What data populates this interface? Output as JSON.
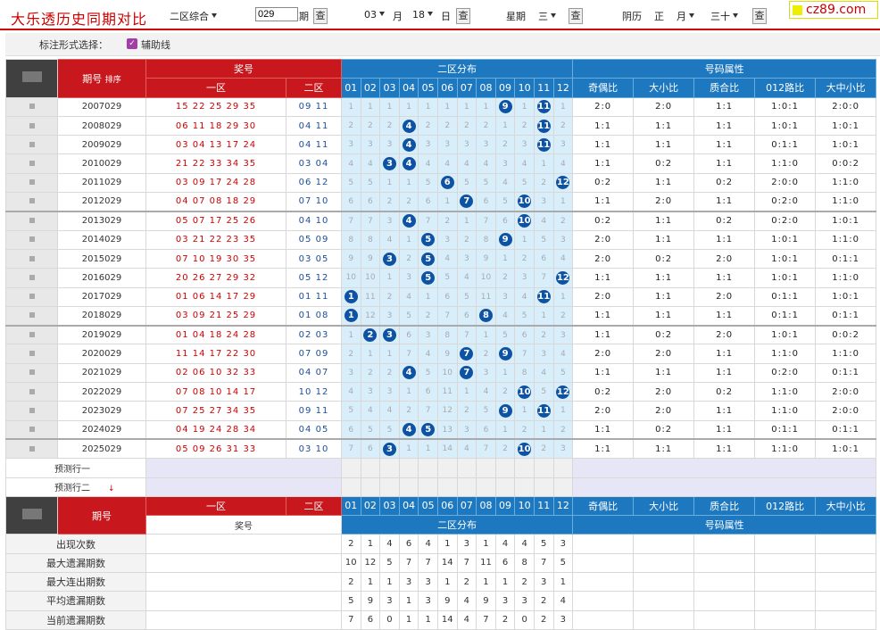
{
  "header": {
    "title": "大乐透历史同期对比",
    "zone_select": "二区综合",
    "issue_value": "029",
    "issue_label": "期",
    "query": "查",
    "month": "03",
    "month_label": "月",
    "day": "18",
    "day_label": "日",
    "week_label": "星期",
    "week": "三",
    "lunar_label": "阴历",
    "lunar_month": "正",
    "lunar_month_label": "月",
    "lunar_day": "三十",
    "logo": "cz89.com"
  },
  "options": {
    "label": "标注形式选择：",
    "check": "✓",
    "aux": "辅助线"
  },
  "table": {
    "h_issue": "期号",
    "h_sort": "排序",
    "h_prize": "奖号",
    "h_zone1": "一区",
    "h_zone2": "二区",
    "h_dist": "二区分布",
    "h_attr": "号码属性",
    "num_cols": [
      "01",
      "02",
      "03",
      "04",
      "05",
      "06",
      "07",
      "08",
      "09",
      "10",
      "11",
      "12"
    ],
    "attr_cols": [
      "奇偶比",
      "大小比",
      "质合比",
      "012路比",
      "大中小比"
    ],
    "rows": [
      {
        "issue": "2007029",
        "z1": "15 22 25 29 35",
        "z2": "09 11",
        "d": [
          "1",
          "1",
          "1",
          "1",
          "1",
          "1",
          "1",
          "1",
          "9",
          "1",
          "11",
          "1"
        ],
        "hit": [
          9,
          11
        ],
        "a": [
          "2:0",
          "2:0",
          "1:1",
          "1:0:1",
          "2:0:0"
        ]
      },
      {
        "issue": "2008029",
        "z1": "06 11 18 29 30",
        "z2": "04 11",
        "d": [
          "2",
          "2",
          "2",
          "4",
          "2",
          "2",
          "2",
          "2",
          "1",
          "2",
          "11",
          "2"
        ],
        "hit": [
          4,
          11
        ],
        "a": [
          "1:1",
          "1:1",
          "1:1",
          "1:0:1",
          "1:0:1"
        ]
      },
      {
        "issue": "2009029",
        "z1": "03 04 13 17 24",
        "z2": "04 11",
        "d": [
          "3",
          "3",
          "3",
          "4",
          "3",
          "3",
          "3",
          "3",
          "2",
          "3",
          "11",
          "3"
        ],
        "hit": [
          4,
          11
        ],
        "a": [
          "1:1",
          "1:1",
          "1:1",
          "0:1:1",
          "1:0:1"
        ]
      },
      {
        "issue": "2010029",
        "z1": "21 22 33 34 35",
        "z2": "03 04",
        "d": [
          "4",
          "4",
          "3",
          "4",
          "4",
          "4",
          "4",
          "4",
          "3",
          "4",
          "1",
          "4"
        ],
        "hit": [
          3,
          4
        ],
        "a": [
          "1:1",
          "0:2",
          "1:1",
          "1:1:0",
          "0:0:2"
        ]
      },
      {
        "issue": "2011029",
        "z1": "03 09 17 24 28",
        "z2": "06 12",
        "d": [
          "5",
          "5",
          "1",
          "1",
          "5",
          "6",
          "5",
          "5",
          "4",
          "5",
          "2",
          "12"
        ],
        "hit": [
          6,
          12
        ],
        "a": [
          "0:2",
          "1:1",
          "0:2",
          "2:0:0",
          "1:1:0"
        ]
      },
      {
        "issue": "2012029",
        "z1": "04 07 08 18 29",
        "z2": "07 10",
        "d": [
          "6",
          "6",
          "2",
          "2",
          "6",
          "1",
          "7",
          "6",
          "5",
          "10",
          "3",
          "1"
        ],
        "hit": [
          7,
          10
        ],
        "a": [
          "1:1",
          "2:0",
          "1:1",
          "0:2:0",
          "1:1:0"
        ]
      },
      {
        "issue": "2013029",
        "z1": "05 07 17 25 26",
        "z2": "04 10",
        "d": [
          "7",
          "7",
          "3",
          "4",
          "7",
          "2",
          "1",
          "7",
          "6",
          "10",
          "4",
          "2"
        ],
        "hit": [
          4,
          10
        ],
        "a": [
          "0:2",
          "1:1",
          "0:2",
          "0:2:0",
          "1:0:1"
        ]
      },
      {
        "issue": "2014029",
        "z1": "03 21 22 23 35",
        "z2": "05 09",
        "d": [
          "8",
          "8",
          "4",
          "1",
          "5",
          "3",
          "2",
          "8",
          "9",
          "1",
          "5",
          "3"
        ],
        "hit": [
          5,
          9
        ],
        "a": [
          "2:0",
          "1:1",
          "1:1",
          "1:0:1",
          "1:1:0"
        ]
      },
      {
        "issue": "2015029",
        "z1": "07 10 19 30 35",
        "z2": "03 05",
        "d": [
          "9",
          "9",
          "3",
          "2",
          "5",
          "4",
          "3",
          "9",
          "1",
          "2",
          "6",
          "4"
        ],
        "hit": [
          3,
          5
        ],
        "a": [
          "2:0",
          "0:2",
          "2:0",
          "1:0:1",
          "0:1:1"
        ]
      },
      {
        "issue": "2016029",
        "z1": "20 26 27 29 32",
        "z2": "05 12",
        "d": [
          "10",
          "10",
          "1",
          "3",
          "5",
          "5",
          "4",
          "10",
          "2",
          "3",
          "7",
          "12"
        ],
        "hit": [
          5,
          12
        ],
        "a": [
          "1:1",
          "1:1",
          "1:1",
          "1:0:1",
          "1:1:0"
        ]
      },
      {
        "issue": "2017029",
        "z1": "01 06 14 17 29",
        "z2": "01 11",
        "d": [
          "1",
          "11",
          "2",
          "4",
          "1",
          "6",
          "5",
          "11",
          "3",
          "4",
          "11",
          "1"
        ],
        "hit": [
          1,
          11
        ],
        "a": [
          "2:0",
          "1:1",
          "2:0",
          "0:1:1",
          "1:0:1"
        ]
      },
      {
        "issue": "2018029",
        "z1": "03 09 21 25 29",
        "z2": "01 08",
        "d": [
          "1",
          "12",
          "3",
          "5",
          "2",
          "7",
          "6",
          "8",
          "4",
          "5",
          "1",
          "2"
        ],
        "hit": [
          1,
          8
        ],
        "a": [
          "1:1",
          "1:1",
          "1:1",
          "0:1:1",
          "0:1:1"
        ]
      },
      {
        "issue": "2019029",
        "z1": "01 04 18 24 28",
        "z2": "02 03",
        "d": [
          "1",
          "2",
          "3",
          "6",
          "3",
          "8",
          "7",
          "1",
          "5",
          "6",
          "2",
          "3"
        ],
        "hit": [
          2,
          3
        ],
        "a": [
          "1:1",
          "0:2",
          "2:0",
          "1:0:1",
          "0:0:2"
        ]
      },
      {
        "issue": "2020029",
        "z1": "11 14 17 22 30",
        "z2": "07 09",
        "d": [
          "2",
          "1",
          "1",
          "7",
          "4",
          "9",
          "7",
          "2",
          "9",
          "7",
          "3",
          "4"
        ],
        "hit": [
          7,
          9
        ],
        "a": [
          "2:0",
          "2:0",
          "1:1",
          "1:1:0",
          "1:1:0"
        ]
      },
      {
        "issue": "2021029",
        "z1": "02 06 10 32 33",
        "z2": "04 07",
        "d": [
          "3",
          "2",
          "2",
          "4",
          "5",
          "10",
          "7",
          "3",
          "1",
          "8",
          "4",
          "5"
        ],
        "hit": [
          4,
          7
        ],
        "a": [
          "1:1",
          "1:1",
          "1:1",
          "0:2:0",
          "0:1:1"
        ]
      },
      {
        "issue": "2022029",
        "z1": "07 08 10 14 17",
        "z2": "10 12",
        "d": [
          "4",
          "3",
          "3",
          "1",
          "6",
          "11",
          "1",
          "4",
          "2",
          "10",
          "5",
          "12"
        ],
        "hit": [
          10,
          12
        ],
        "a": [
          "0:2",
          "2:0",
          "0:2",
          "1:1:0",
          "2:0:0"
        ]
      },
      {
        "issue": "2023029",
        "z1": "07 25 27 34 35",
        "z2": "09 11",
        "d": [
          "5",
          "4",
          "4",
          "2",
          "7",
          "12",
          "2",
          "5",
          "9",
          "1",
          "11",
          "1"
        ],
        "hit": [
          9,
          11
        ],
        "a": [
          "2:0",
          "2:0",
          "1:1",
          "1:1:0",
          "2:0:0"
        ]
      },
      {
        "issue": "2024029",
        "z1": "04 19 24 28 34",
        "z2": "04 05",
        "d": [
          "6",
          "5",
          "5",
          "4",
          "5",
          "13",
          "3",
          "6",
          "1",
          "2",
          "1",
          "2"
        ],
        "hit": [
          4,
          5
        ],
        "a": [
          "1:1",
          "0:2",
          "1:1",
          "0:1:1",
          "0:1:1"
        ]
      },
      {
        "issue": "2025029",
        "z1": "05 09 26 31 33",
        "z2": "03 10",
        "d": [
          "7",
          "6",
          "3",
          "1",
          "1",
          "14",
          "4",
          "7",
          "2",
          "10",
          "2",
          "3"
        ],
        "hit": [
          3,
          10
        ],
        "a": [
          "1:1",
          "1:1",
          "1:1",
          "1:1:0",
          "1:0:1"
        ]
      }
    ],
    "pred1": "预测行一",
    "pred2": "预测行二",
    "pred_arrow": "↓",
    "stats": [
      {
        "label": "出现次数",
        "v": [
          "2",
          "1",
          "4",
          "6",
          "4",
          "1",
          "3",
          "1",
          "4",
          "4",
          "5",
          "3"
        ]
      },
      {
        "label": "最大遗漏期数",
        "v": [
          "10",
          "12",
          "5",
          "7",
          "7",
          "14",
          "7",
          "11",
          "6",
          "8",
          "7",
          "5"
        ]
      },
      {
        "label": "最大连出期数",
        "v": [
          "2",
          "1",
          "1",
          "3",
          "3",
          "1",
          "2",
          "1",
          "1",
          "2",
          "3",
          "1"
        ]
      },
      {
        "label": "平均遗漏期数",
        "v": [
          "5",
          "9",
          "3",
          "1",
          "3",
          "9",
          "4",
          "9",
          "3",
          "3",
          "2",
          "4"
        ]
      },
      {
        "label": "当前遗漏期数",
        "v": [
          "7",
          "6",
          "0",
          "1",
          "1",
          "14",
          "4",
          "7",
          "2",
          "0",
          "2",
          "3"
        ]
      }
    ]
  }
}
